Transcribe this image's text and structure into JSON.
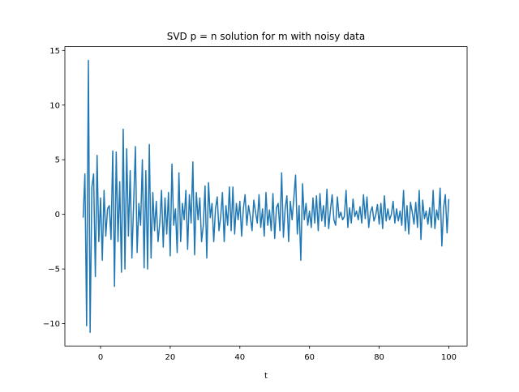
{
  "chart_data": {
    "type": "line",
    "title": "SVD p = n solution for m with noisy data",
    "xlabel": "t",
    "x": [
      -5,
      -4.5,
      -4,
      -3.5,
      -3,
      -2.5,
      -2,
      -1.5,
      -1,
      -0.5,
      0,
      0.5,
      1,
      1.5,
      2,
      2.5,
      3,
      3.5,
      4,
      4.5,
      5,
      5.5,
      6,
      6.5,
      7,
      7.5,
      8,
      8.5,
      9,
      9.5,
      10,
      10.5,
      11,
      11.5,
      12,
      12.5,
      13,
      13.5,
      14,
      14.5,
      15,
      15.5,
      16,
      16.5,
      17,
      17.5,
      18,
      18.5,
      19,
      19.5,
      20,
      20.5,
      21,
      21.5,
      22,
      22.5,
      23,
      23.5,
      24,
      24.5,
      25,
      25.5,
      26,
      26.5,
      27,
      27.5,
      28,
      28.5,
      29,
      29.5,
      30,
      30.5,
      31,
      31.5,
      32,
      32.5,
      33,
      33.5,
      34,
      34.5,
      35,
      35.5,
      36,
      36.5,
      37,
      37.5,
      38,
      38.5,
      39,
      39.5,
      40,
      40.5,
      41,
      41.5,
      42,
      42.5,
      43,
      43.5,
      44,
      44.5,
      45,
      45.5,
      46,
      46.5,
      47,
      47.5,
      48,
      48.5,
      49,
      49.5,
      50,
      50.5,
      51,
      51.5,
      52,
      52.5,
      53,
      53.5,
      54,
      54.5,
      55,
      55.5,
      56,
      56.5,
      57,
      57.5,
      58,
      58.5,
      59,
      59.5,
      60,
      60.5,
      61,
      61.5,
      62,
      62.5,
      63,
      63.5,
      64,
      64.5,
      65,
      65.5,
      66,
      66.5,
      67,
      67.5,
      68,
      68.5,
      69,
      69.5,
      70,
      70.5,
      71,
      71.5,
      72,
      72.5,
      73,
      73.5,
      74,
      74.5,
      75,
      75.5,
      76,
      76.5,
      77,
      77.5,
      78,
      78.5,
      79,
      79.5,
      80,
      80.5,
      81,
      81.5,
      82,
      82.5,
      83,
      83.5,
      84,
      84.5,
      85,
      85.5,
      86,
      86.5,
      87,
      87.5,
      88,
      88.5,
      89,
      89.5,
      90,
      90.5,
      91,
      91.5,
      92,
      92.5,
      93,
      93.5,
      94,
      94.5,
      95,
      95.5,
      96,
      96.5,
      97,
      97.5,
      98,
      98.5,
      99,
      99.5,
      100
    ],
    "values": [
      -0.3,
      3.7,
      -10.2,
      14.1,
      -10.8,
      2.5,
      3.7,
      -5.7,
      5.4,
      -2.5,
      1.5,
      -4.2,
      2.2,
      -2.0,
      0.5,
      0.8,
      -2.3,
      5.8,
      -6.6,
      5.7,
      -2.5,
      3.0,
      -5.3,
      7.8,
      -5.0,
      6.0,
      -2.0,
      4.0,
      -4.0,
      1.0,
      6.2,
      -3.5,
      1.0,
      -1.0,
      5.0,
      -4.9,
      4.0,
      -5.0,
      6.4,
      -4.0,
      2.0,
      -1.5,
      1.2,
      -2.5,
      -0.8,
      2.2,
      -3.0,
      1.5,
      -1.8,
      2.0,
      -3.8,
      4.6,
      -1.0,
      0.5,
      -3.5,
      3.8,
      -2.5,
      1.0,
      -0.5,
      2.2,
      -3.2,
      1.8,
      -0.8,
      4.8,
      -3.7,
      2.0,
      -0.5,
      1.5,
      -2.5,
      -1.0,
      2.6,
      -4.0,
      2.9,
      -0.3,
      1.0,
      -2.5,
      0.5,
      1.6,
      -1.5,
      -0.2,
      2.0,
      -2.5,
      0.8,
      -1.0,
      2.5,
      -1.5,
      2.5,
      -1.8,
      1.0,
      -0.5,
      1.2,
      -2.0,
      0.5,
      1.8,
      -1.0,
      0.8,
      -0.2,
      -1.5,
      1.3,
      0.2,
      -0.8,
      1.8,
      -1.2,
      0.5,
      -2.0,
      2.0,
      -1.0,
      0.4,
      -1.5,
      1.9,
      -2.2,
      0.6,
      1.0,
      -1.5,
      3.8,
      -2.1,
      0.5,
      1.7,
      -2.5,
      1.2,
      -0.5,
      1.5,
      3.6,
      -1.8,
      0.8,
      -4.2,
      2.8,
      -0.5,
      1.0,
      -1.0,
      0.3,
      -1.2,
      1.5,
      -0.8,
      1.7,
      -1.5,
      1.9,
      -0.6,
      0.8,
      -1.1,
      2.3,
      -1.3,
      0.4,
      1.8,
      -0.5,
      -1.0,
      1.6,
      -0.3,
      0.2,
      -0.5,
      -0.2,
      2.2,
      -1.2,
      0.6,
      -0.8,
      1.4,
      -0.2,
      0.3,
      -0.5,
      0.7,
      -0.8,
      1.8,
      -0.4,
      1.6,
      -1.2,
      0.2,
      0.7,
      -0.6,
      -0.1,
      0.9,
      -0.9,
      1.0,
      -1.3,
      1.7,
      -0.6,
      0.5,
      -0.5,
      0.0,
      1.2,
      -0.8,
      0.5,
      -0.6,
      0.3,
      -1.0,
      2.2,
      -1.5,
      0.8,
      -1.8,
      1.1,
      0.2,
      -0.9,
      1.1,
      -1.2,
      2.2,
      -2.3,
      1.3,
      -0.4,
      0.3,
      -0.9,
      0.6,
      -1.2,
      2.2,
      -1.3,
      0.4,
      -0.5,
      2.4,
      -2.9,
      0.6,
      1.8,
      -1.7,
      1.4
    ],
    "color": "#1f77b4",
    "xlim": [
      -10.25,
      105.25
    ],
    "xticks": [
      0,
      20,
      40,
      60,
      80,
      100
    ],
    "ylim": [
      -12.05,
      15.35
    ],
    "yticks": [
      {
        "value": -10,
        "label": "−10"
      },
      {
        "value": -5,
        "label": "−5"
      },
      0,
      5,
      10,
      15
    ]
  }
}
